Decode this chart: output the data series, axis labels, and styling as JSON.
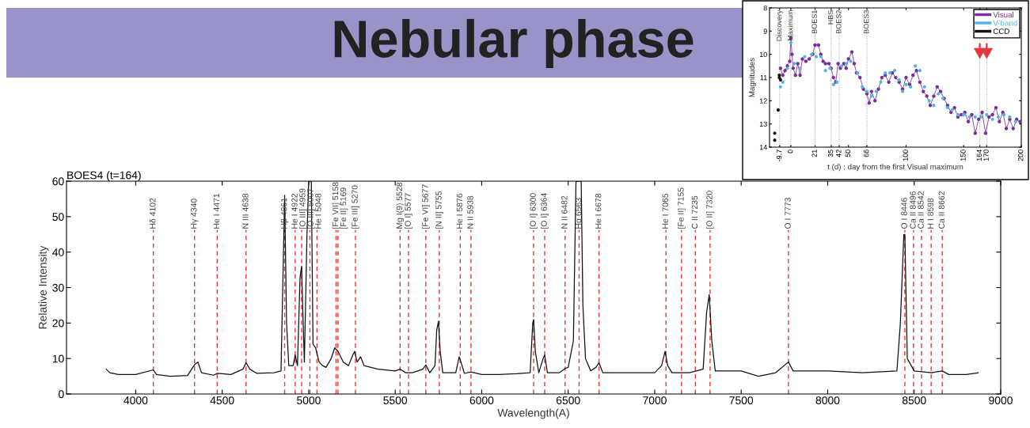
{
  "chart_data": [
    {
      "type": "line",
      "title": "Nebular phase",
      "subtitle": "BOES4 (t=164)",
      "xlabel": "Wavelength(A)",
      "ylabel": "Relative Intensity",
      "xlim": [
        3600,
        9000
      ],
      "xticks": [
        4000,
        4500,
        5000,
        5500,
        6000,
        6500,
        7000,
        7500,
        8000,
        8500,
        9000
      ],
      "ylim": [
        0,
        60
      ],
      "yticks": [
        0,
        10,
        20,
        30,
        40,
        50,
        60
      ],
      "grid": false,
      "legend": false,
      "series": [
        {
          "color": "#111111",
          "x": [
            3830,
            3850,
            3900,
            4000,
            4102,
            4120,
            4200,
            4300,
            4330,
            4345,
            4360,
            4380,
            4450,
            4471,
            4550,
            4620,
            4638,
            4660,
            4700,
            4800,
            4840,
            4850,
            4861,
            4872,
            4885,
            4910,
            4922,
            4935,
            4950,
            4959,
            4965,
            4975,
            4990,
            5000,
            5007,
            5015,
            5025,
            5040,
            5060,
            5080,
            5100,
            5130,
            5150,
            5170,
            5200,
            5230,
            5255,
            5265,
            5280,
            5300,
            5320,
            5400,
            5500,
            5528,
            5560,
            5600,
            5660,
            5677,
            5700,
            5730,
            5740,
            5750,
            5760,
            5775,
            5850,
            5870,
            5880,
            5900,
            5938,
            6000,
            6100,
            6200,
            6280,
            6295,
            6300,
            6310,
            6330,
            6355,
            6364,
            6380,
            6450,
            6482,
            6500,
            6530,
            6545,
            6575,
            6585,
            6600,
            6630,
            6660,
            6678,
            6700,
            6800,
            7000,
            7040,
            7060,
            7075,
            7100,
            7200,
            7280,
            7300,
            7315,
            7330,
            7350,
            7500,
            7600,
            7700,
            7760,
            7773,
            7800,
            7900,
            8000,
            8200,
            8400,
            8420,
            8440,
            8446,
            8460,
            8500,
            8600,
            8662,
            8700,
            8800,
            8870
          ],
          "values": [
            7,
            6,
            5.5,
            5.5,
            6.8,
            5.5,
            5,
            5.2,
            7.5,
            8.5,
            9,
            6,
            5.3,
            5.8,
            5.5,
            7,
            8.8,
            7,
            5.8,
            6,
            6.5,
            30,
            56,
            20,
            8,
            8,
            11,
            8,
            33,
            36,
            25,
            9,
            45,
            60,
            60,
            60,
            14,
            13,
            9,
            8,
            7.5,
            10,
            13,
            12,
            9,
            8,
            11,
            12,
            9,
            10.5,
            8,
            7,
            6.5,
            7,
            6,
            6,
            7,
            8.2,
            6,
            8,
            18,
            20.5,
            12,
            6,
            6,
            10.5,
            9,
            5.8,
            6.2,
            5.5,
            5.5,
            5.7,
            6,
            20,
            21,
            12,
            6,
            10,
            11,
            6,
            6,
            7.2,
            7.5,
            15,
            60,
            60,
            25,
            10,
            6.5,
            7.5,
            8.8,
            6,
            6,
            6,
            8,
            12,
            8,
            6,
            6,
            7,
            23,
            28,
            15,
            6.5,
            6.5,
            5,
            6,
            8.5,
            9,
            6.5,
            6.5,
            6.5,
            6,
            6.5,
            20,
            45,
            45,
            10,
            6.5,
            6,
            6.5,
            5.5,
            5.5,
            6
          ]
        }
      ],
      "ref_lines": [
        {
          "axis": "x",
          "value": 4102,
          "label": "Hδ 4102",
          "color": "#e8383d",
          "line_style": "dashed"
        },
        {
          "axis": "x",
          "value": 4340,
          "label": "Hγ 4340",
          "color": "#e8383d",
          "line_style": "dashed"
        },
        {
          "axis": "x",
          "value": 4471,
          "label": "He I 4471",
          "color": "#e8383d",
          "line_style": "dashed"
        },
        {
          "axis": "x",
          "value": 4638,
          "label": "N III 4638",
          "color": "#e8383d",
          "line_style": "dashed"
        },
        {
          "axis": "x",
          "value": 4861,
          "label": "Hβ 4861",
          "color": "#e8383d",
          "line_style": "dashed"
        },
        {
          "axis": "x",
          "value": 4922,
          "label": "He I 4922",
          "color": "#e8383d",
          "line_style": "dashed"
        },
        {
          "axis": "x",
          "value": 4959,
          "label": "[O III] 4959",
          "color": "#e8383d",
          "line_style": "dashed"
        },
        {
          "axis": "x",
          "value": 5007,
          "label": "[O III] 5007",
          "color": "#e8383d",
          "line_style": "dashed"
        },
        {
          "axis": "x",
          "value": 5048,
          "label": "He I 5048",
          "color": "#e8383d",
          "line_style": "dashed"
        },
        {
          "axis": "x",
          "value": 5158,
          "label": "[Fe VII] 5158",
          "color": "#e8383d",
          "line_style": "dashed"
        },
        {
          "axis": "x",
          "value": 5169,
          "label": "[Fe II] 5169",
          "color": "#e8383d",
          "line_style": "dashed"
        },
        {
          "axis": "x",
          "value": 5270,
          "label": "[Fe III] 5270",
          "color": "#e8383d",
          "line_style": "dashed"
        },
        {
          "axis": "x",
          "value": 5528,
          "label": "Mg I(9) 5528",
          "color": "#e8383d",
          "line_style": "dashed"
        },
        {
          "axis": "x",
          "value": 5577,
          "label": "[O I] 5577",
          "color": "#e8383d",
          "line_style": "dashed"
        },
        {
          "axis": "x",
          "value": 5677,
          "label": "[Fe VI] 5677",
          "color": "#e8383d",
          "line_style": "dashed"
        },
        {
          "axis": "x",
          "value": 5755,
          "label": "[N II] 5755",
          "color": "#e8383d",
          "line_style": "dashed"
        },
        {
          "axis": "x",
          "value": 5876,
          "label": "He I 5876",
          "color": "#e8383d",
          "line_style": "dashed"
        },
        {
          "axis": "x",
          "value": 5938,
          "label": "N II 5938",
          "color": "#e8383d",
          "line_style": "dashed"
        },
        {
          "axis": "x",
          "value": 6300,
          "label": "[O I] 6300",
          "color": "#e8383d",
          "line_style": "dashed"
        },
        {
          "axis": "x",
          "value": 6364,
          "label": "[O I] 6364",
          "color": "#e8383d",
          "line_style": "dashed"
        },
        {
          "axis": "x",
          "value": 6482,
          "label": "N II 6482",
          "color": "#e8383d",
          "line_style": "dashed"
        },
        {
          "axis": "x",
          "value": 6563,
          "label": "Hα 6563",
          "color": "#e8383d",
          "line_style": "dashed"
        },
        {
          "axis": "x",
          "value": 6678,
          "label": "He I 6678",
          "color": "#e8383d",
          "line_style": "dashed"
        },
        {
          "axis": "x",
          "value": 7065,
          "label": "He I 7065",
          "color": "#e8383d",
          "line_style": "dashed"
        },
        {
          "axis": "x",
          "value": 7155,
          "label": "[Fe II] 7155",
          "color": "#e8383d",
          "line_style": "dashed"
        },
        {
          "axis": "x",
          "value": 7235,
          "label": "C II 7235",
          "color": "#e8383d",
          "line_style": "dashed"
        },
        {
          "axis": "x",
          "value": 7320,
          "label": "[O II] 7320",
          "color": "#e8383d",
          "line_style": "dashed"
        },
        {
          "axis": "x",
          "value": 7773,
          "label": "O I 7773",
          "color": "#e8383d",
          "line_style": "dashed"
        },
        {
          "axis": "x",
          "value": 8446,
          "label": "O I 8446",
          "color": "#e8383d",
          "line_style": "dashed"
        },
        {
          "axis": "x",
          "value": 8496,
          "label": "Ca II 8496",
          "color": "#e8383d",
          "line_style": "dashed"
        },
        {
          "axis": "x",
          "value": 8542,
          "label": "Ca II 8542",
          "color": "#e8383d",
          "line_style": "dashed"
        },
        {
          "axis": "x",
          "value": 8598,
          "label": "H I 8598",
          "color": "#e8383d",
          "line_style": "dashed"
        },
        {
          "axis": "x",
          "value": 8662,
          "label": "Ca II 8662",
          "color": "#e8383d",
          "line_style": "dashed"
        }
      ]
    },
    {
      "type": "line",
      "xlabel": "t (d) : day from the first Visual maximum",
      "ylabel": "Magnitudes",
      "xlim": [
        -18.5,
        200
      ],
      "xticks": [
        -9.7,
        0,
        21,
        35,
        42,
        50,
        66,
        100,
        150,
        164,
        170,
        200
      ],
      "ylim": [
        14,
        8
      ],
      "yticks": [
        8,
        9,
        10,
        11,
        12,
        13,
        14
      ],
      "grid": false,
      "legend": "top right",
      "series": [
        {
          "name": "Visual",
          "type": "line",
          "marker": "circle",
          "color": "#7b2d9e",
          "x": [
            -9,
            -7,
            -5,
            -3,
            -1,
            0,
            1,
            2,
            4,
            6,
            8,
            10,
            13,
            16,
            19,
            21,
            24,
            26,
            28,
            30,
            33,
            35,
            37,
            39,
            41,
            43,
            46,
            48,
            50,
            53,
            55,
            57,
            60,
            63,
            66,
            68,
            70,
            73,
            76,
            79,
            82,
            85,
            88,
            91,
            94,
            97,
            100,
            103,
            106,
            109,
            112,
            115,
            118,
            121,
            124,
            127,
            130,
            133,
            136,
            139,
            142,
            145,
            148,
            151,
            154,
            157,
            160,
            163,
            166,
            169,
            172,
            175,
            178,
            181,
            184,
            187,
            190,
            193,
            196,
            199
          ],
          "values": [
            10.6,
            10.9,
            10.7,
            10.5,
            10.3,
            9.3,
            10.0,
            10.6,
            10.9,
            10.4,
            10.9,
            10.2,
            10.3,
            10.2,
            10.0,
            9.6,
            9.6,
            10.0,
            10.3,
            10.4,
            10.4,
            10.6,
            11.0,
            11.2,
            10.4,
            10.6,
            10.4,
            10.6,
            10.2,
            9.9,
            10.4,
            10.8,
            11.0,
            11.5,
            11.7,
            12.1,
            11.6,
            12.0,
            11.5,
            11.0,
            10.9,
            11.2,
            10.8,
            11.0,
            11.2,
            11.5,
            11.0,
            11.3,
            10.9,
            10.7,
            11.2,
            11.6,
            11.8,
            12.2,
            11.8,
            11.4,
            11.6,
            11.9,
            12.2,
            12.5,
            12.3,
            12.7,
            12.6,
            12.5,
            12.9,
            12.6,
            13.4,
            12.8,
            12.5,
            13.4,
            12.7,
            12.6,
            12.3,
            12.9,
            12.5,
            13.2,
            12.8,
            13.2,
            12.8,
            12.9
          ]
        },
        {
          "name": "V-band",
          "type": "scatter",
          "marker": "circle",
          "color": "#4fb6e3",
          "x": [
            -9,
            -7,
            -3,
            0,
            3,
            8,
            12,
            18,
            22,
            26,
            30,
            34,
            37,
            40,
            44,
            48,
            52,
            58,
            62,
            66,
            70,
            74,
            78,
            82,
            86,
            90,
            94,
            97,
            100,
            104,
            108,
            112,
            116,
            120,
            124,
            128,
            132,
            136,
            140,
            145,
            150,
            155,
            160,
            165,
            170,
            175,
            180,
            185,
            190,
            195
          ],
          "values": [
            11.4,
            11.2,
            10.6,
            9.5,
            10.4,
            10.6,
            10.1,
            10.0,
            10.1,
            10.1,
            10.7,
            10.6,
            11.3,
            11.2,
            10.5,
            10.4,
            10.3,
            10.8,
            11.4,
            11.6,
            11.8,
            11.6,
            11.2,
            10.8,
            10.8,
            10.7,
            11.1,
            11.6,
            11.3,
            11.4,
            10.5,
            10.7,
            11.4,
            12.0,
            12.2,
            11.7,
            11.9,
            12.3,
            12.4,
            12.6,
            12.6,
            12.7,
            12.7,
            12.7,
            12.6,
            12.8,
            12.7,
            12.6,
            12.7,
            12.9
          ]
        },
        {
          "name": "CCD",
          "type": "scatter",
          "marker": "circle",
          "color": "#111111",
          "x": [
            -14,
            -14,
            -11,
            -10,
            -10,
            -9
          ],
          "values": [
            13.4,
            13.7,
            12.4,
            10.9,
            11.0,
            11.1
          ]
        }
      ],
      "ref_lines": [
        {
          "axis": "x",
          "value": -9.7,
          "label": "Discovery",
          "color": "#888888",
          "line_style": "dotted"
        },
        {
          "axis": "x",
          "value": 0,
          "label": "Maximum",
          "color": "#888888",
          "line_style": "dotted"
        },
        {
          "axis": "x",
          "value": 21,
          "label": "BOES1",
          "color": "#888888",
          "line_style": "dotted"
        },
        {
          "axis": "x",
          "value": 35,
          "label": "HBS",
          "color": "#888888",
          "line_style": "dotted"
        },
        {
          "axis": "x",
          "value": 42,
          "label": "BOES2",
          "color": "#888888",
          "line_style": "dotted"
        },
        {
          "axis": "x",
          "value": 66,
          "label": "BOES3",
          "color": "#888888",
          "line_style": "dotted"
        },
        {
          "axis": "x",
          "value": 164,
          "color": "#888888",
          "line_style": "dotted"
        },
        {
          "axis": "x",
          "value": 170,
          "color": "#888888",
          "line_style": "dotted"
        }
      ]
    }
  ]
}
